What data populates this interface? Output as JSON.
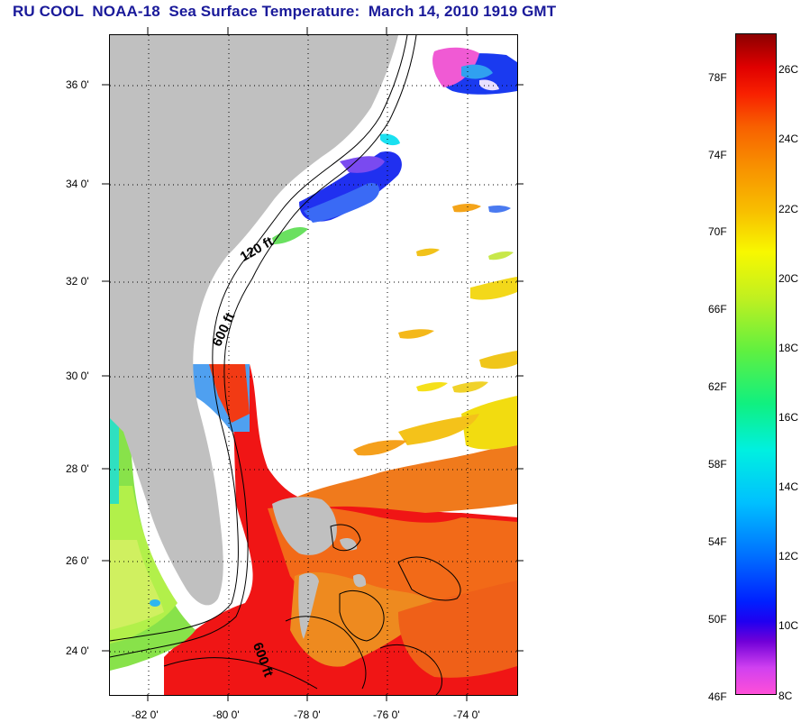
{
  "title": "RU COOL  NOAA-18  Sea Surface Temperature:  March 14, 2010 1919 GMT",
  "map": {
    "latitude_labels": [
      "36 0'",
      "34 0'",
      "32 0'",
      "30 0'",
      "28 0'",
      "26 0'",
      "24 0'"
    ],
    "longitude_labels": [
      "-82 0'",
      "-80 0'",
      "-78 0'",
      "-76 0'",
      "-74 0'"
    ],
    "contour_labels": [
      "120 ft",
      "600 ft",
      "600 ft"
    ],
    "land_color": "#c0c0c0",
    "no_data_color": "#ffffff",
    "grid": "dotted"
  },
  "colorbar": {
    "fahrenheit_labels": [
      "78F",
      "74F",
      "70F",
      "66F",
      "62F",
      "58F",
      "54F",
      "50F",
      "46F"
    ],
    "celsius_labels": [
      "26C",
      "24C",
      "22C",
      "20C",
      "18C",
      "16C",
      "14C",
      "12C",
      "10C",
      "8C"
    ],
    "range_c": [
      8,
      27
    ],
    "scale": "pink-purple-blue-cyan-green-yellow-orange-red-darkred"
  }
}
